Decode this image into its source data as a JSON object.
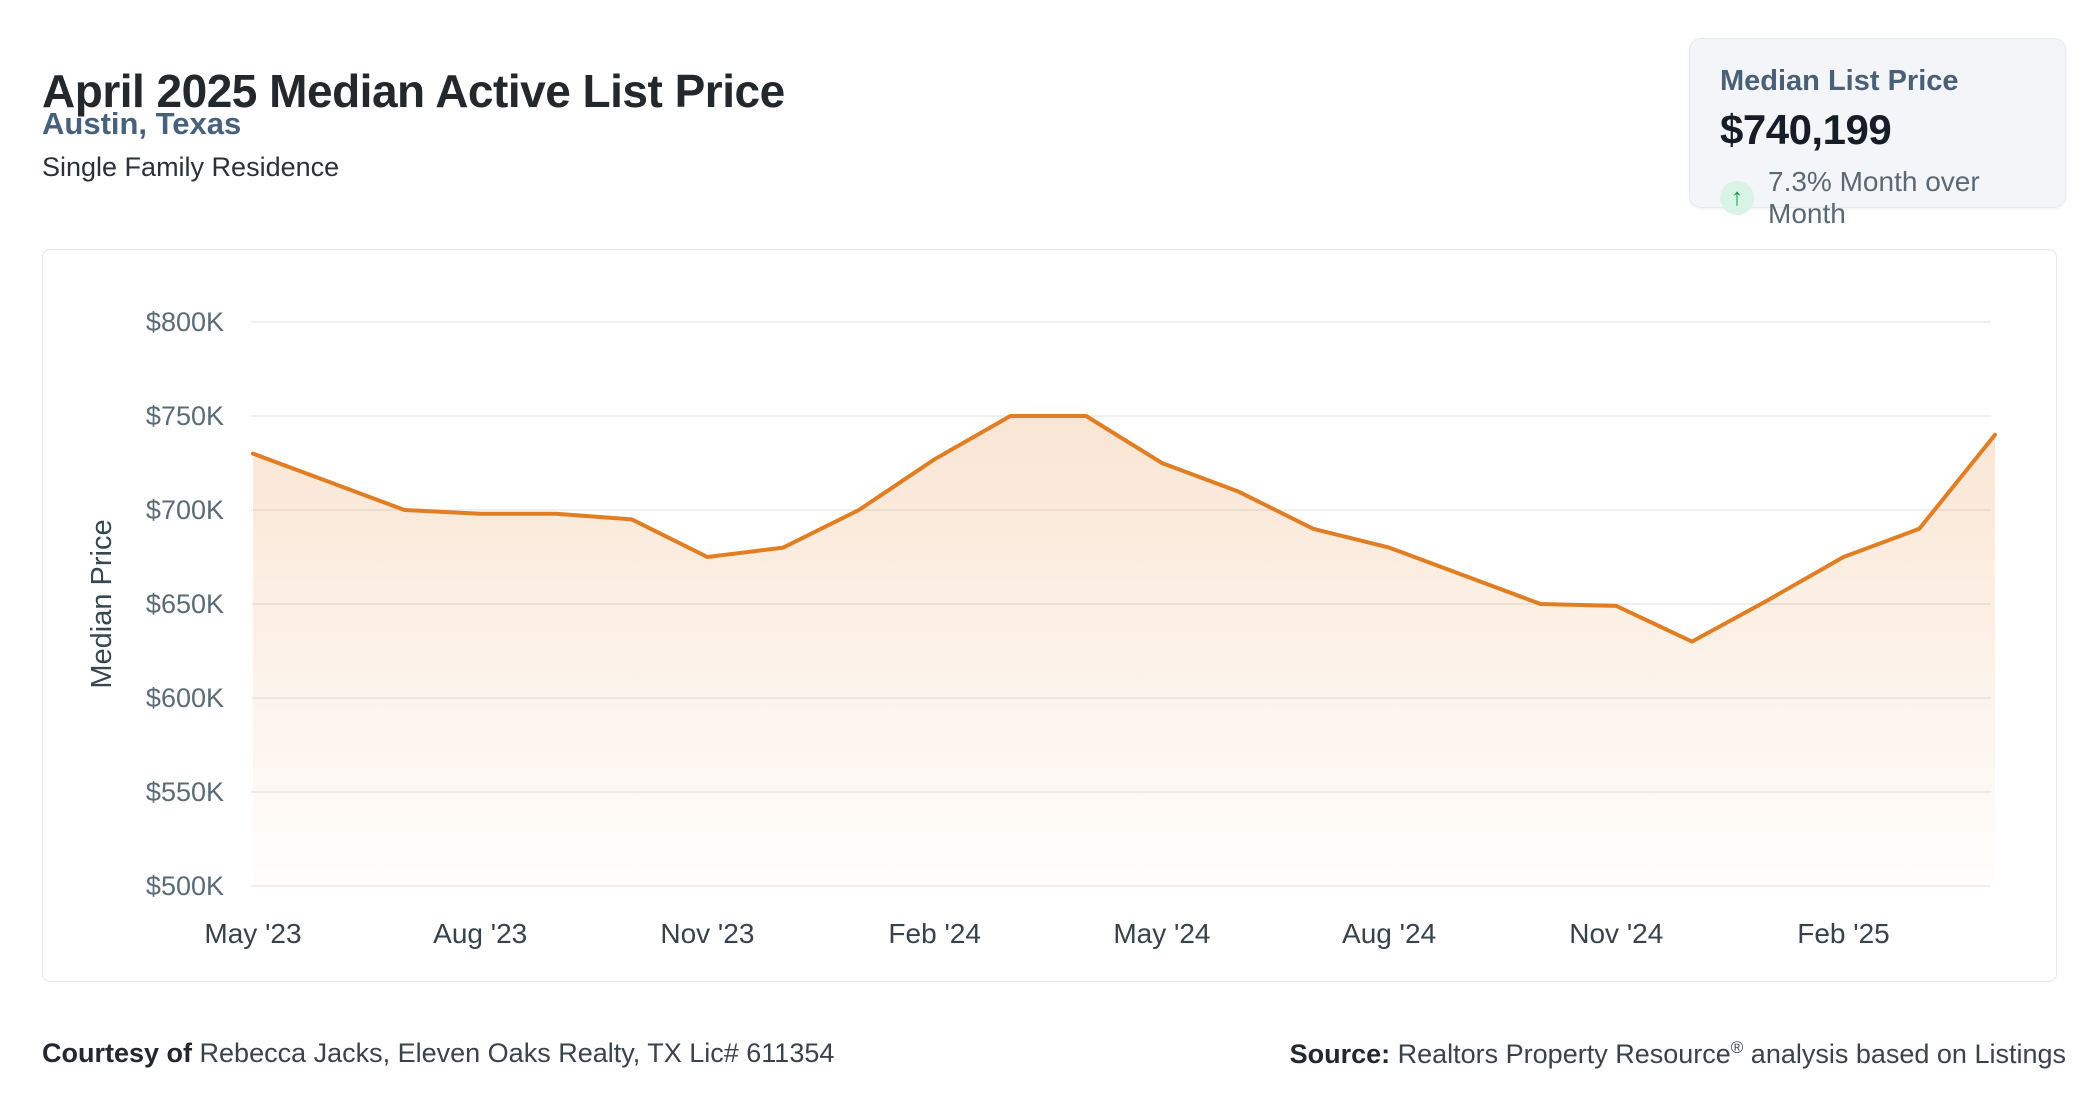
{
  "header": {
    "title": "April 2025 Median Active List Price",
    "location": "Austin, Texas",
    "property_type": "Single Family Residence"
  },
  "summary_card": {
    "label": "Median List Price",
    "value": "$740,199",
    "trend_icon": "arrow-up",
    "trend_glyph": "↑",
    "trend_text": "7.3% Month over Month",
    "trend_color": "#16984f",
    "trend_bg": "#d9f3e4"
  },
  "chart_data": {
    "type": "area",
    "title": "",
    "ylabel": "Median Price",
    "xlabel": "",
    "unit": "USD thousands",
    "ylim": [
      500,
      800
    ],
    "grid": true,
    "legend": false,
    "line_color": "#e17d23",
    "fill_color_rgb": "225,125,35",
    "grid_color": "#e9eaec",
    "y_tick_color": "#5a6b76",
    "x_tick_color": "#37424b",
    "axis_title_color": "#37474f",
    "x": [
      "May '23",
      "Jun '23",
      "Jul '23",
      "Aug '23",
      "Sep '23",
      "Oct '23",
      "Nov '23",
      "Dec '23",
      "Jan '24",
      "Feb '24",
      "Mar '24",
      "Apr '24",
      "May '24",
      "Jun '24",
      "Jul '24",
      "Aug '24",
      "Sep '24",
      "Oct '24",
      "Nov '24",
      "Dec '24",
      "Jan '25",
      "Feb '25",
      "Mar '25",
      "Apr '25"
    ],
    "values": [
      730,
      715,
      700,
      698,
      698,
      695,
      675,
      680,
      700,
      727,
      750,
      750,
      725,
      710,
      690,
      680,
      665,
      650,
      649,
      630,
      652,
      675,
      690,
      740
    ],
    "x_tick_labels": [
      "May '23",
      "Aug '23",
      "Nov '23",
      "Feb '24",
      "May '24",
      "Aug '24",
      "Nov '24",
      "Feb '25"
    ],
    "x_tick_every": 3,
    "y_ticks": [
      800,
      750,
      700,
      650,
      600,
      550,
      500
    ],
    "y_tick_labels": [
      "$800K",
      "$750K",
      "$700K",
      "$650K",
      "$600K",
      "$550K",
      "$500K"
    ]
  },
  "footer": {
    "courtesy_label": "Courtesy of",
    "courtesy_text": " Rebecca Jacks, Eleven Oaks Realty, TX Lic# 611354",
    "source_label": "Source:",
    "source_text_pre": " Realtors Property Resource",
    "source_reg_mark": "®",
    "source_text_post": " analysis based on Listings"
  }
}
